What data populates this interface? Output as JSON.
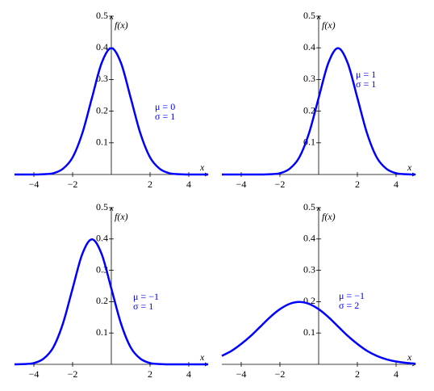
{
  "chart_data": [
    {
      "type": "line",
      "xlabel": "x",
      "ylabel": "f(x)",
      "annotations": [
        "μ = 0",
        "σ = 1"
      ],
      "color": "#0000ff",
      "x": [
        -5,
        -4.5,
        -4,
        -3.5,
        -3,
        -2.5,
        -2,
        -1.5,
        -1,
        -0.5,
        0,
        0.5,
        1,
        1.5,
        2,
        2.5,
        3,
        3.5,
        4,
        4.5,
        5
      ],
      "values": [
        0,
        0,
        0,
        0.001,
        0.004,
        0.018,
        0.054,
        0.13,
        0.242,
        0.352,
        0.399,
        0.352,
        0.242,
        0.13,
        0.054,
        0.018,
        0.004,
        0.001,
        0,
        0,
        0
      ],
      "xlim": [
        -5,
        5
      ],
      "xticks": [
        {
          "value": -4,
          "label": "−4"
        },
        {
          "value": -2,
          "label": "−2"
        },
        2,
        4
      ],
      "ylim": [
        0,
        0.5
      ],
      "yticks": [
        0.1,
        0.2,
        0.3,
        0.4,
        0.5
      ]
    },
    {
      "type": "line",
      "xlabel": "x",
      "ylabel": "f(x)",
      "annotations": [
        "μ = 1",
        "σ = 1"
      ],
      "color": "#0000ff",
      "x": [
        -5,
        -4.5,
        -4,
        -3.5,
        -3,
        -2.5,
        -2,
        -1.5,
        -1,
        -0.5,
        0,
        0.5,
        1,
        1.5,
        2,
        2.5,
        3,
        3.5,
        4,
        4.5,
        5
      ],
      "values": [
        0,
        0,
        0,
        0,
        0,
        0.001,
        0.004,
        0.018,
        0.054,
        0.13,
        0.242,
        0.352,
        0.399,
        0.352,
        0.242,
        0.13,
        0.054,
        0.018,
        0.004,
        0.001,
        0
      ],
      "xlim": [
        -5,
        5
      ],
      "xticks": [
        {
          "value": -4,
          "label": "−4"
        },
        {
          "value": -2,
          "label": "−2"
        },
        2,
        4
      ],
      "ylim": [
        0,
        0.5
      ],
      "yticks": [
        0.1,
        0.2,
        0.3,
        0.4,
        0.5
      ]
    },
    {
      "type": "line",
      "xlabel": "x",
      "ylabel": "f(x)",
      "annotations": [
        "μ = −1",
        "σ = 1"
      ],
      "color": "#0000ff",
      "x": [
        -5,
        -4.5,
        -4,
        -3.5,
        -3,
        -2.5,
        -2,
        -1.5,
        -1,
        -0.5,
        0,
        0.5,
        1,
        1.5,
        2,
        2.5,
        3,
        3.5,
        4,
        4.5,
        5
      ],
      "values": [
        0,
        0.001,
        0.004,
        0.018,
        0.054,
        0.13,
        0.242,
        0.352,
        0.399,
        0.352,
        0.242,
        0.13,
        0.054,
        0.018,
        0.004,
        0.001,
        0,
        0,
        0,
        0,
        0
      ],
      "xlim": [
        -5,
        5
      ],
      "xticks": [
        {
          "value": -4,
          "label": "−4"
        },
        {
          "value": -2,
          "label": "−2"
        },
        2,
        4
      ],
      "ylim": [
        0,
        0.5
      ],
      "yticks": [
        0.1,
        0.2,
        0.3,
        0.4,
        0.5
      ]
    },
    {
      "type": "line",
      "xlabel": "x",
      "ylabel": "f(x)",
      "annotations": [
        "μ = −1",
        "σ = 2"
      ],
      "color": "#0000ff",
      "x": [
        -5,
        -4.5,
        -4,
        -3.5,
        -3,
        -2.5,
        -2,
        -1.5,
        -1,
        -0.5,
        0,
        0.5,
        1,
        1.5,
        2,
        2.5,
        3,
        3.5,
        4,
        4.5,
        5
      ],
      "values": [
        0.027,
        0.043,
        0.065,
        0.091,
        0.121,
        0.151,
        0.176,
        0.193,
        0.199,
        0.193,
        0.176,
        0.151,
        0.121,
        0.091,
        0.065,
        0.043,
        0.027,
        0.016,
        0.009,
        0.005,
        0.002
      ],
      "xlim": [
        -5,
        5
      ],
      "xticks": [
        {
          "value": -4,
          "label": "−4"
        },
        {
          "value": -2,
          "label": "−2"
        },
        2,
        4
      ],
      "ylim": [
        0,
        0.5
      ],
      "yticks": [
        0.1,
        0.2,
        0.3,
        0.4,
        0.5
      ]
    }
  ]
}
